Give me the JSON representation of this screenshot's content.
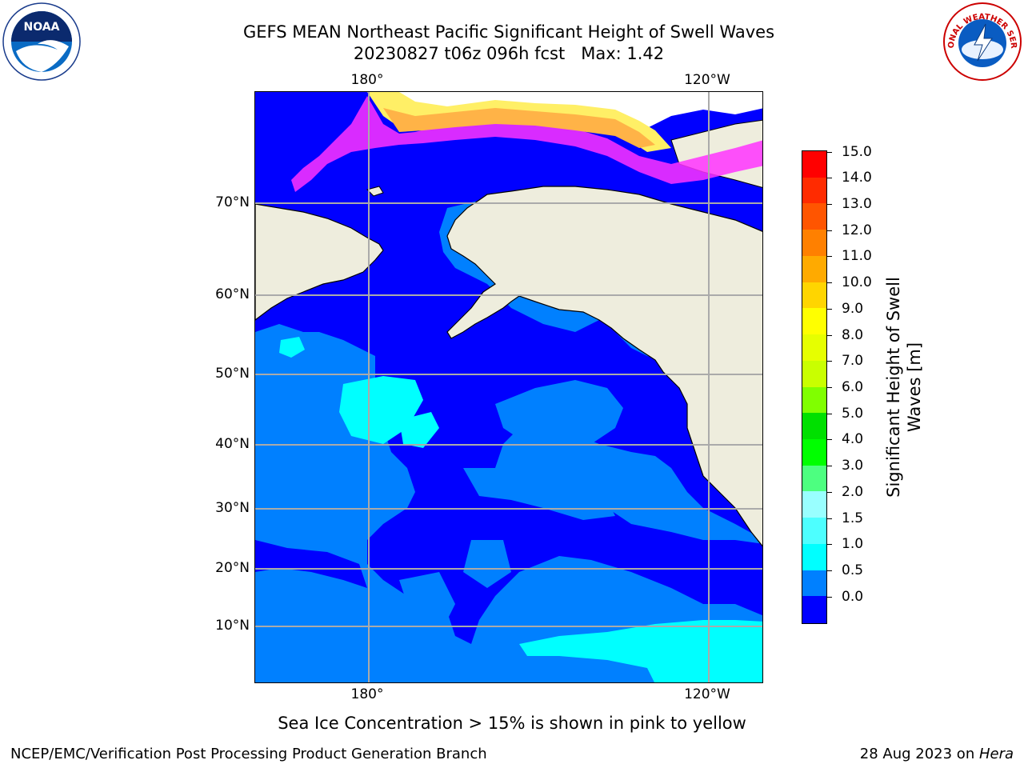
{
  "header": {
    "title_line1": "GEFS MEAN Northeast Pacific Significant Height of Swell Waves",
    "title_line2": "20230827 t06z 096h fcst   Max: 1.42"
  },
  "logos": {
    "left": "NOAA",
    "right_text": "NATIONAL WEATHER SERVICE"
  },
  "map": {
    "top_lon_labels": [
      "180°",
      "120°W"
    ],
    "bottom_lon_labels": [
      "180°",
      "120°W"
    ],
    "lat_labels": [
      "70°N",
      "60°N",
      "50°N",
      "40°N",
      "30°N",
      "20°N",
      "10°N"
    ],
    "colors": {
      "ocean_low": "#0000ff",
      "ocean_mid": "#0080ff",
      "ocean_high": "#00ffff",
      "land": "#eeeddd",
      "ice_pink": "#ff33ff",
      "ice_orange": "#ffb347",
      "ice_yellow": "#ffef66"
    }
  },
  "colorbar": {
    "title": "Significant Height of Swell Waves [m]",
    "labels": [
      "15.0",
      "14.0",
      "13.0",
      "12.0",
      "11.0",
      "10.0",
      "9.0",
      "8.0",
      "7.0",
      "6.0",
      "5.0",
      "4.0",
      "3.0",
      "2.0",
      "1.5",
      "1.0",
      "0.5",
      "0.0"
    ],
    "segment_colors": [
      "#ff0000",
      "#ff2b00",
      "#ff5500",
      "#ff8000",
      "#ffaa00",
      "#ffd500",
      "#ffff00",
      "#e6ff00",
      "#c9ff00",
      "#80ff00",
      "#00e000",
      "#00ff00",
      "#4dff80",
      "#99ffff",
      "#4dffff",
      "#00ffff",
      "#0080ff",
      "#0000ff"
    ]
  },
  "note": "Sea Ice Concentration > 15% is shown in pink to yellow",
  "footer": {
    "left": "NCEP/EMC/Verification Post Processing Product Generation Branch",
    "right_prefix": "28 Aug 2023 on ",
    "right_italic": "Hera"
  }
}
